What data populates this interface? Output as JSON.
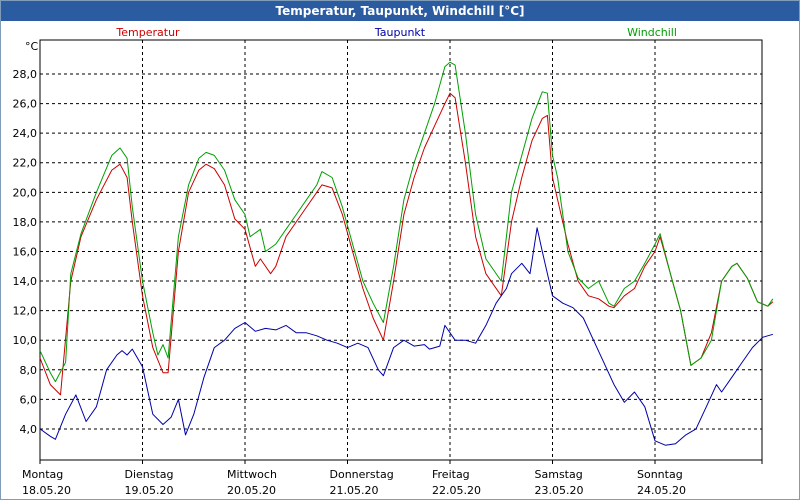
{
  "window": {
    "title": "Temperatur, Taupunkt, Windchill [°C]"
  },
  "colors": {
    "temperatur": "#cc0000",
    "taupunkt": "#0000aa",
    "windchill": "#00a000",
    "title_bg": "#2b5ba0"
  },
  "chart_data": {
    "type": "line",
    "title": "Temperatur, Taupunkt, Windchill [°C]",
    "ylabel": "°C",
    "ylim": [
      1.9,
      30.3
    ],
    "xlim": [
      0,
      7
    ],
    "yticks": [
      "4,0",
      "6,0",
      "8,0",
      "10,0",
      "12,0",
      "14,0",
      "16,0",
      "18,0",
      "20,0",
      "22,0",
      "24,0",
      "26,0",
      "28,0"
    ],
    "days": [
      {
        "day": "Montag",
        "date": "18.05.20"
      },
      {
        "day": "Dienstag",
        "date": "19.05.20"
      },
      {
        "day": "Mittwoch",
        "date": "20.05.20"
      },
      {
        "day": "Donnerstag",
        "date": "21.05.20"
      },
      {
        "day": "Freitag",
        "date": "22.05.20"
      },
      {
        "day": "Samstag",
        "date": "23.05.20"
      },
      {
        "day": "Sonntag",
        "date": "24.05.20"
      }
    ],
    "grid": true,
    "series": [
      {
        "name": "Temperatur",
        "color": "#cc0000",
        "points": [
          [
            0,
            8.8
          ],
          [
            0.1,
            7.0
          ],
          [
            0.2,
            6.3
          ],
          [
            0.3,
            14.0
          ],
          [
            0.4,
            17.0
          ],
          [
            0.55,
            19.5
          ],
          [
            0.7,
            21.5
          ],
          [
            0.78,
            21.9
          ],
          [
            0.85,
            21.0
          ],
          [
            0.9,
            18.0
          ],
          [
            1.0,
            13.0
          ],
          [
            1.1,
            9.5
          ],
          [
            1.2,
            7.8
          ],
          [
            1.25,
            7.8
          ],
          [
            1.35,
            16.0
          ],
          [
            1.45,
            20.0
          ],
          [
            1.55,
            21.5
          ],
          [
            1.62,
            21.9
          ],
          [
            1.7,
            21.6
          ],
          [
            1.8,
            20.5
          ],
          [
            1.9,
            18.2
          ],
          [
            2.0,
            17.5
          ],
          [
            2.1,
            15.0
          ],
          [
            2.15,
            15.5
          ],
          [
            2.25,
            14.5
          ],
          [
            2.3,
            15.0
          ],
          [
            2.4,
            17.0
          ],
          [
            2.5,
            18.0
          ],
          [
            2.6,
            19.0
          ],
          [
            2.7,
            20.0
          ],
          [
            2.75,
            20.5
          ],
          [
            2.85,
            20.3
          ],
          [
            2.95,
            18.5
          ],
          [
            3.05,
            16.0
          ],
          [
            3.15,
            13.5
          ],
          [
            3.25,
            11.5
          ],
          [
            3.35,
            10.0
          ],
          [
            3.45,
            14.0
          ],
          [
            3.55,
            18.5
          ],
          [
            3.65,
            21.0
          ],
          [
            3.75,
            23.0
          ],
          [
            3.85,
            24.5
          ],
          [
            3.95,
            26.0
          ],
          [
            4.0,
            26.7
          ],
          [
            4.05,
            26.4
          ],
          [
            4.15,
            22.0
          ],
          [
            4.25,
            17.0
          ],
          [
            4.35,
            14.5
          ],
          [
            4.5,
            13.0
          ],
          [
            4.6,
            18.0
          ],
          [
            4.7,
            21.0
          ],
          [
            4.8,
            23.5
          ],
          [
            4.9,
            25.0
          ],
          [
            4.95,
            25.2
          ],
          [
            5.0,
            21.0
          ],
          [
            5.05,
            19.5
          ],
          [
            5.15,
            16.5
          ],
          [
            5.25,
            14.0
          ],
          [
            5.35,
            13.0
          ],
          [
            5.45,
            12.8
          ],
          [
            5.55,
            12.3
          ],
          [
            5.6,
            12.2
          ],
          [
            5.7,
            13.0
          ],
          [
            5.8,
            13.5
          ],
          [
            5.9,
            15.0
          ],
          [
            6.0,
            16.0
          ],
          [
            6.05,
            17.0
          ],
          [
            6.15,
            14.5
          ],
          [
            6.25,
            12.0
          ],
          [
            6.35,
            8.3
          ],
          [
            6.45,
            8.8
          ],
          [
            6.55,
            10.5
          ],
          [
            6.65,
            14.0
          ],
          [
            6.75,
            15.0
          ],
          [
            6.8,
            15.2
          ],
          [
            6.9,
            14.2
          ],
          [
            7.0,
            12.6
          ],
          [
            7.1,
            12.3
          ],
          [
            7.15,
            12.6
          ]
        ]
      },
      {
        "name": "Taupunkt",
        "color": "#0000aa",
        "points": [
          [
            0,
            4.0
          ],
          [
            0.1,
            3.5
          ],
          [
            0.15,
            3.3
          ],
          [
            0.25,
            5.0
          ],
          [
            0.35,
            6.3
          ],
          [
            0.45,
            4.5
          ],
          [
            0.55,
            5.5
          ],
          [
            0.65,
            8.0
          ],
          [
            0.75,
            9.0
          ],
          [
            0.8,
            9.3
          ],
          [
            0.85,
            9.0
          ],
          [
            0.9,
            9.4
          ],
          [
            1.0,
            8.2
          ],
          [
            1.1,
            5.0
          ],
          [
            1.2,
            4.3
          ],
          [
            1.28,
            4.8
          ],
          [
            1.35,
            6.0
          ],
          [
            1.42,
            3.6
          ],
          [
            1.5,
            5.0
          ],
          [
            1.6,
            7.5
          ],
          [
            1.7,
            9.5
          ],
          [
            1.8,
            10.0
          ],
          [
            1.9,
            10.8
          ],
          [
            2.0,
            11.2
          ],
          [
            2.1,
            10.6
          ],
          [
            2.2,
            10.8
          ],
          [
            2.3,
            10.7
          ],
          [
            2.4,
            11.0
          ],
          [
            2.5,
            10.5
          ],
          [
            2.6,
            10.5
          ],
          [
            2.7,
            10.3
          ],
          [
            2.8,
            10.0
          ],
          [
            2.9,
            9.8
          ],
          [
            3.0,
            9.5
          ],
          [
            3.1,
            9.8
          ],
          [
            3.2,
            9.5
          ],
          [
            3.3,
            8.0
          ],
          [
            3.35,
            7.6
          ],
          [
            3.45,
            9.5
          ],
          [
            3.55,
            10.0
          ],
          [
            3.65,
            9.6
          ],
          [
            3.75,
            9.7
          ],
          [
            3.8,
            9.4
          ],
          [
            3.9,
            9.6
          ],
          [
            3.95,
            11.0
          ],
          [
            4.05,
            10.0
          ],
          [
            4.15,
            10.0
          ],
          [
            4.25,
            9.8
          ],
          [
            4.35,
            11.0
          ],
          [
            4.45,
            12.5
          ],
          [
            4.55,
            13.5
          ],
          [
            4.6,
            14.5
          ],
          [
            4.7,
            15.2
          ],
          [
            4.78,
            14.5
          ],
          [
            4.85,
            17.6
          ],
          [
            4.9,
            16.0
          ],
          [
            5.0,
            13.0
          ],
          [
            5.1,
            12.5
          ],
          [
            5.2,
            12.2
          ],
          [
            5.3,
            11.5
          ],
          [
            5.4,
            10.0
          ],
          [
            5.5,
            8.5
          ],
          [
            5.6,
            7.0
          ],
          [
            5.7,
            5.8
          ],
          [
            5.8,
            6.5
          ],
          [
            5.9,
            5.5
          ],
          [
            6.0,
            3.2
          ],
          [
            6.1,
            2.9
          ],
          [
            6.2,
            3.0
          ],
          [
            6.3,
            3.6
          ],
          [
            6.4,
            4.0
          ],
          [
            6.5,
            5.5
          ],
          [
            6.6,
            7.0
          ],
          [
            6.65,
            6.5
          ],
          [
            6.75,
            7.5
          ],
          [
            6.85,
            8.5
          ],
          [
            6.95,
            9.5
          ],
          [
            7.05,
            10.2
          ],
          [
            7.15,
            10.4
          ]
        ]
      },
      {
        "name": "Windchill",
        "color": "#00a000",
        "points": [
          [
            0,
            9.3
          ],
          [
            0.1,
            7.8
          ],
          [
            0.15,
            7.2
          ],
          [
            0.25,
            8.5
          ],
          [
            0.3,
            14.5
          ],
          [
            0.4,
            17.2
          ],
          [
            0.55,
            20.0
          ],
          [
            0.7,
            22.5
          ],
          [
            0.78,
            23.0
          ],
          [
            0.85,
            22.3
          ],
          [
            0.9,
            19.0
          ],
          [
            1.0,
            14.0
          ],
          [
            1.1,
            10.5
          ],
          [
            1.15,
            9.0
          ],
          [
            1.2,
            9.7
          ],
          [
            1.25,
            8.8
          ],
          [
            1.35,
            17.0
          ],
          [
            1.45,
            20.5
          ],
          [
            1.55,
            22.3
          ],
          [
            1.62,
            22.7
          ],
          [
            1.7,
            22.5
          ],
          [
            1.8,
            21.5
          ],
          [
            1.9,
            19.5
          ],
          [
            2.0,
            18.5
          ],
          [
            2.05,
            17.0
          ],
          [
            2.15,
            17.5
          ],
          [
            2.2,
            16.0
          ],
          [
            2.3,
            16.5
          ],
          [
            2.4,
            17.5
          ],
          [
            2.5,
            18.5
          ],
          [
            2.6,
            19.5
          ],
          [
            2.7,
            20.5
          ],
          [
            2.75,
            21.4
          ],
          [
            2.85,
            21.0
          ],
          [
            2.95,
            19.0
          ],
          [
            3.05,
            16.5
          ],
          [
            3.15,
            14.0
          ],
          [
            3.25,
            12.5
          ],
          [
            3.35,
            11.2
          ],
          [
            3.45,
            15.0
          ],
          [
            3.55,
            19.5
          ],
          [
            3.65,
            22.0
          ],
          [
            3.75,
            24.0
          ],
          [
            3.85,
            26.0
          ],
          [
            3.95,
            28.5
          ],
          [
            4.0,
            28.8
          ],
          [
            4.05,
            28.6
          ],
          [
            4.15,
            24.0
          ],
          [
            4.25,
            18.5
          ],
          [
            4.35,
            15.5
          ],
          [
            4.5,
            14.0
          ],
          [
            4.6,
            20.0
          ],
          [
            4.7,
            22.5
          ],
          [
            4.8,
            25.0
          ],
          [
            4.9,
            26.8
          ],
          [
            4.95,
            26.7
          ],
          [
            5.0,
            22.5
          ],
          [
            5.05,
            21.0
          ],
          [
            5.15,
            16.0
          ],
          [
            5.25,
            14.2
          ],
          [
            5.35,
            13.5
          ],
          [
            5.45,
            14.0
          ],
          [
            5.55,
            12.5
          ],
          [
            5.6,
            12.3
          ],
          [
            5.7,
            13.5
          ],
          [
            5.8,
            14.0
          ],
          [
            5.9,
            15.2
          ],
          [
            6.0,
            16.5
          ],
          [
            6.05,
            17.2
          ],
          [
            6.15,
            14.5
          ],
          [
            6.25,
            12.0
          ],
          [
            6.35,
            8.3
          ],
          [
            6.45,
            8.8
          ],
          [
            6.55,
            10.0
          ],
          [
            6.65,
            14.0
          ],
          [
            6.75,
            15.0
          ],
          [
            6.8,
            15.2
          ],
          [
            6.9,
            14.2
          ],
          [
            7.0,
            12.6
          ],
          [
            7.1,
            12.3
          ],
          [
            7.15,
            12.8
          ]
        ]
      }
    ]
  }
}
